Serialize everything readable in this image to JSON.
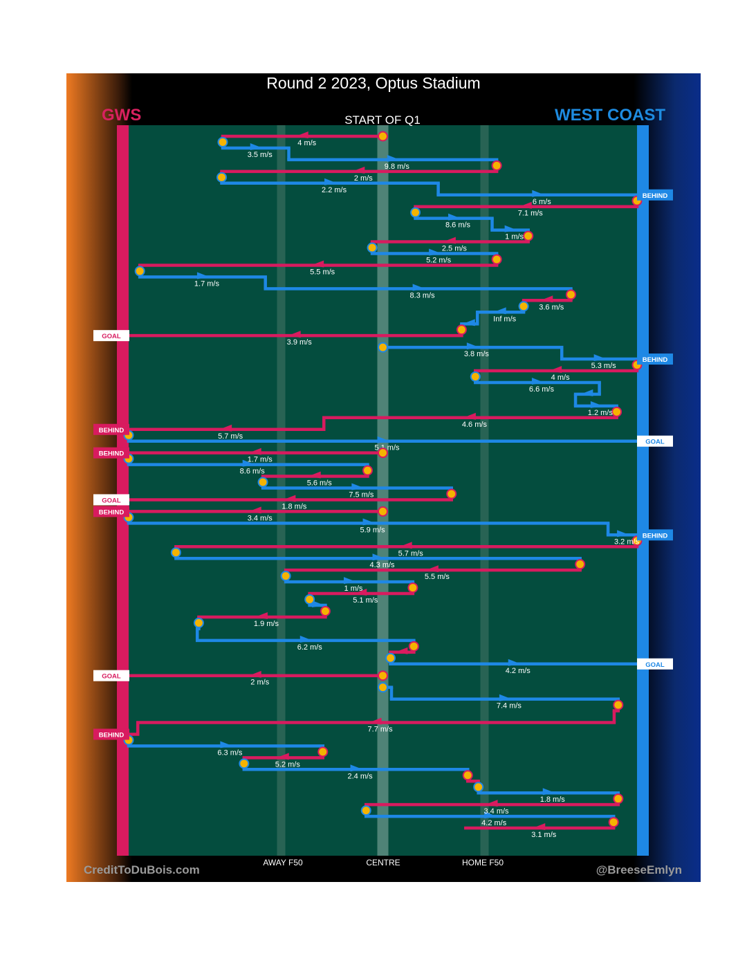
{
  "header": {
    "title": "Round 2 2023, Optus Stadium",
    "home_team": "GWS",
    "away_team": "WEST COAST",
    "quarter": "START OF Q1"
  },
  "footer": {
    "credit_left": "CreditToDuBois.com",
    "credit_right": "@BreeseEmlyn"
  },
  "colors": {
    "home": "#d81b5f",
    "away": "#1e88e5",
    "field": "#044d3e",
    "centre_band": "#4f8377",
    "f50_band": "#2c6656",
    "marker_fill": "#f5b301"
  },
  "chart_data": {
    "type": "chain-timeline",
    "title": "Round 2 2023, Optus Stadium",
    "subtitle": "START OF Q1",
    "x_axis": {
      "range": [
        0,
        100
      ],
      "labels": [
        {
          "x": 30,
          "text": "AWAY F50"
        },
        {
          "x": 50,
          "text": "CENTRE"
        },
        {
          "x": 70,
          "text": "HOME F50"
        }
      ]
    },
    "chains": [
      {
        "team": "home",
        "from": 50,
        "to": 18.5,
        "row": 1,
        "speed": "4 m/s"
      },
      {
        "team": "away",
        "from": 18.5,
        "to": 31.5,
        "row": 2,
        "speed": "3.5 m/s"
      },
      {
        "team": "away",
        "from": 31.5,
        "to": 72.4,
        "row": 3,
        "speed": "9.8 m/s"
      },
      {
        "team": "home",
        "from": 72.4,
        "to": 18.3,
        "row": 4,
        "speed": "2 m/s"
      },
      {
        "team": "away",
        "from": 18.3,
        "to": 60.9,
        "row": 5,
        "speed": "2.2 m/s"
      },
      {
        "team": "away",
        "from": 60.9,
        "to": 100,
        "row": 6,
        "speed": "6 m/s",
        "outcome": "BEHIND"
      },
      {
        "team": "home",
        "from": 100,
        "to": 56.4,
        "row": 7,
        "speed": "7.1 m/s"
      },
      {
        "team": "away",
        "from": 56.4,
        "to": 71.5,
        "row": 8,
        "speed": "8.6 m/s"
      },
      {
        "team": "away",
        "from": 71.5,
        "to": 78.6,
        "row": 9,
        "speed": "1 m/s"
      },
      {
        "team": "home",
        "from": 78.6,
        "to": 47.9,
        "row": 10,
        "speed": "2.5 m/s"
      },
      {
        "team": "away",
        "from": 47.9,
        "to": 72.4,
        "row": 11,
        "speed": "5.2 m/s"
      },
      {
        "team": "home",
        "from": 72.4,
        "to": 2.2,
        "row": 12,
        "speed": "5.5 m/s"
      },
      {
        "team": "away",
        "from": 2.2,
        "to": 26.9,
        "row": 13,
        "speed": "1.7 m/s"
      },
      {
        "team": "away",
        "from": 26.9,
        "to": 87.0,
        "row": 14,
        "speed": "8.3 m/s"
      },
      {
        "team": "home",
        "from": 87.0,
        "to": 77.7,
        "row": 15,
        "speed": "3.6 m/s"
      },
      {
        "team": "away",
        "from": 77.7,
        "to": 68.6,
        "row": 16,
        "speed": "Inf m/s"
      },
      {
        "team": "away",
        "from": 68.6,
        "to": 65.5,
        "row": 17,
        "speed": ""
      },
      {
        "team": "home",
        "from": 65.5,
        "to": 0,
        "row": 18,
        "speed": "3.9 m/s",
        "outcome": "GOAL"
      },
      {
        "team": "away",
        "from": 50,
        "to": 85.2,
        "row": 19,
        "speed": "3.8 m/s"
      },
      {
        "team": "away",
        "from": 85.2,
        "to": 100,
        "row": 20,
        "speed": "5.3 m/s",
        "outcome": "BEHIND"
      },
      {
        "team": "home",
        "from": 100,
        "to": 68.2,
        "row": 21,
        "speed": "4 m/s"
      },
      {
        "team": "away",
        "from": 68.2,
        "to": 92.6,
        "row": 22,
        "speed": "6.6 m/s"
      },
      {
        "team": "away",
        "from": 92.6,
        "to": 87.9,
        "row": 23,
        "speed": ""
      },
      {
        "team": "away",
        "from": 87.9,
        "to": 96.0,
        "row": 24,
        "speed": "1.2 m/s"
      },
      {
        "team": "home",
        "from": 96.0,
        "to": 38.4,
        "row": 25,
        "speed": "4.6 m/s"
      },
      {
        "team": "home",
        "from": 38.4,
        "to": 0,
        "row": 26,
        "speed": "5.7 m/s",
        "outcome": "BEHIND"
      },
      {
        "team": "away",
        "from": 0,
        "to": 100,
        "row": 27,
        "speed": "5.1 m/s",
        "outcome": "GOAL"
      },
      {
        "team": "home",
        "from": 50,
        "to": 0,
        "row": 28,
        "speed": "1.7 m/s",
        "outcome": "BEHIND"
      },
      {
        "team": "away",
        "from": 0,
        "to": 47.0,
        "row": 29,
        "speed": "8.6 m/s"
      },
      {
        "team": "home",
        "from": 47.0,
        "to": 26.4,
        "row": 30,
        "speed": "5.6 m/s"
      },
      {
        "team": "away",
        "from": 26.4,
        "to": 63.5,
        "row": 31,
        "speed": "7.5 m/s"
      },
      {
        "team": "home",
        "from": 63.5,
        "to": 0,
        "row": 32,
        "speed": "1.8 m/s",
        "outcome": "GOAL"
      },
      {
        "team": "home",
        "from": 50,
        "to": 0,
        "row": 33,
        "speed": "3.4 m/s",
        "outcome": "BEHIND"
      },
      {
        "team": "away",
        "from": 0,
        "to": 94.3,
        "row": 34,
        "speed": "5.9 m/s"
      },
      {
        "team": "away",
        "from": 94.3,
        "to": 100,
        "row": 35,
        "speed": "3.2 m/s",
        "outcome": "BEHIND"
      },
      {
        "team": "home",
        "from": 100,
        "to": 9.3,
        "row": 36,
        "speed": "5.7 m/s"
      },
      {
        "team": "away",
        "from": 9.3,
        "to": 88.8,
        "row": 37,
        "speed": "4.3 m/s"
      },
      {
        "team": "home",
        "from": 88.8,
        "to": 30.9,
        "row": 38,
        "speed": "5.5 m/s"
      },
      {
        "team": "away",
        "from": 30.9,
        "to": 55.9,
        "row": 39,
        "speed": "1 m/s"
      },
      {
        "team": "home",
        "from": 55.9,
        "to": 35.6,
        "row": 40,
        "speed": "5.1 m/s"
      },
      {
        "team": "away",
        "from": 35.6,
        "to": 38.7,
        "row": 41,
        "speed": ""
      },
      {
        "team": "home",
        "from": 38.7,
        "to": 13.8,
        "row": 42,
        "speed": "1.9 m/s"
      },
      {
        "team": "away",
        "from": 13.8,
        "to": 13.5,
        "row": 43,
        "speed": ""
      },
      {
        "team": "away",
        "from": 13.5,
        "to": 56.1,
        "row": 44,
        "speed": "6.2 m/s"
      },
      {
        "team": "home",
        "from": 56.1,
        "to": 51.5,
        "row": 45,
        "speed": ""
      },
      {
        "team": "away",
        "from": 51.5,
        "to": 100,
        "row": 46,
        "speed": "4.2 m/s",
        "outcome": "GOAL"
      },
      {
        "team": "home",
        "from": 50,
        "to": 0,
        "row": 47,
        "speed": "2 m/s",
        "outcome": "GOAL"
      },
      {
        "team": "away",
        "from": 50,
        "to": 51.7,
        "row": 48,
        "speed": ""
      },
      {
        "team": "away",
        "from": 51.7,
        "to": 96.3,
        "row": 49,
        "speed": "7.4 m/s"
      },
      {
        "team": "home",
        "from": 96.3,
        "to": 95.5,
        "row": 50,
        "speed": ""
      },
      {
        "team": "home",
        "from": 95.5,
        "to": 1.8,
        "row": 51,
        "speed": "7.7 m/s"
      },
      {
        "team": "home",
        "from": 1.8,
        "to": 0,
        "row": 52,
        "speed": "",
        "outcome": "BEHIND"
      },
      {
        "team": "away",
        "from": 0,
        "to": 38.2,
        "row": 53,
        "speed": "6.3 m/s"
      },
      {
        "team": "home",
        "from": 38.2,
        "to": 22.7,
        "row": 54,
        "speed": "5.2 m/s"
      },
      {
        "team": "away",
        "from": 22.7,
        "to": 66.7,
        "row": 55,
        "speed": "2.4 m/s"
      },
      {
        "team": "home",
        "from": 66.7,
        "to": 68.8,
        "row": 56,
        "speed": ""
      },
      {
        "team": "away",
        "from": 68.8,
        "to": 96.3,
        "row": 57,
        "speed": "1.8 m/s"
      },
      {
        "team": "home",
        "from": 96.3,
        "to": 46.7,
        "row": 58,
        "speed": "3.4 m/s"
      },
      {
        "team": "away",
        "from": 46.7,
        "to": 95.4,
        "row": 59,
        "speed": "4.2 m/s"
      },
      {
        "team": "home",
        "from": 95.4,
        "to": 66.3,
        "row": 60,
        "speed": "3.1 m/s"
      }
    ]
  }
}
